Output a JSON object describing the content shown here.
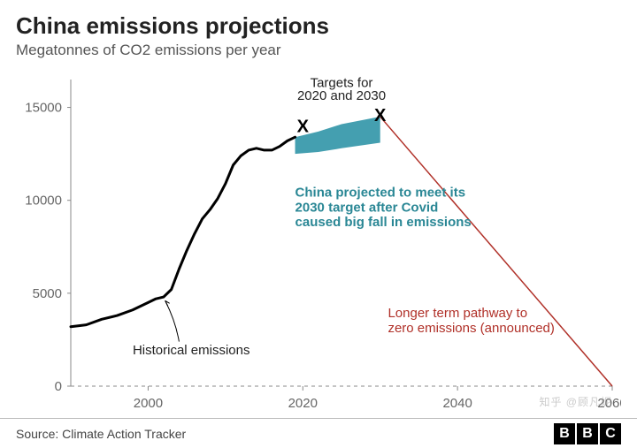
{
  "title": "China emissions projections",
  "subtitle": "Megatonnes of CO2 emissions per year",
  "source": "Source: Climate Action Tracker",
  "logo_letters": [
    "B",
    "B",
    "C"
  ],
  "watermark": "知乎 @顾凡妮",
  "chart": {
    "type": "line",
    "background_color": "#ffffff",
    "xlim": [
      1990,
      2060
    ],
    "ylim": [
      0,
      16500
    ],
    "xticks": [
      2000,
      2020,
      2040,
      2060
    ],
    "yticks": [
      0,
      5000,
      10000,
      15000
    ],
    "axis_color": "#888888",
    "grid_dash": "4 4",
    "historical": {
      "color": "#000000",
      "width": 3,
      "points": [
        [
          1990,
          3200
        ],
        [
          1992,
          3300
        ],
        [
          1994,
          3600
        ],
        [
          1996,
          3800
        ],
        [
          1998,
          4100
        ],
        [
          2000,
          4500
        ],
        [
          2001,
          4700
        ],
        [
          2002,
          4800
        ],
        [
          2003,
          5200
        ],
        [
          2004,
          6300
        ],
        [
          2005,
          7300
        ],
        [
          2006,
          8200
        ],
        [
          2007,
          9000
        ],
        [
          2008,
          9500
        ],
        [
          2009,
          10100
        ],
        [
          2010,
          10900
        ],
        [
          2011,
          11900
        ],
        [
          2012,
          12400
        ],
        [
          2013,
          12700
        ],
        [
          2014,
          12800
        ],
        [
          2015,
          12700
        ],
        [
          2016,
          12700
        ],
        [
          2017,
          12900
        ],
        [
          2018,
          13200
        ],
        [
          2019,
          13400
        ]
      ]
    },
    "projection_band": {
      "fill": "#3a9aac",
      "upper": [
        [
          2019,
          13400
        ],
        [
          2022,
          13700
        ],
        [
          2025,
          14100
        ],
        [
          2030,
          14500
        ]
      ],
      "lower": [
        [
          2019,
          12500
        ],
        [
          2022,
          12600
        ],
        [
          2025,
          12800
        ],
        [
          2030,
          13100
        ]
      ]
    },
    "long_term": {
      "color": "#b03028",
      "width": 1.5,
      "points": [
        [
          2030,
          14500
        ],
        [
          2060,
          0
        ]
      ]
    },
    "targets": [
      {
        "year": 2020,
        "value": 14000
      },
      {
        "year": 2030,
        "value": 14600
      }
    ],
    "annotations": {
      "targets_label": {
        "line1": "Targets for",
        "line2": "2020 and 2030"
      },
      "teal": {
        "line1": "China projected to meet its",
        "line2": "2030 target after Covid",
        "line3": "caused big fall in emissions"
      },
      "red": {
        "line1": "Longer term pathway to",
        "line2": "zero emissions (announced)"
      },
      "historical_label": "Historical emissions"
    }
  }
}
